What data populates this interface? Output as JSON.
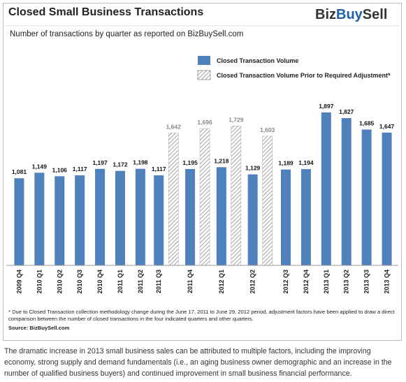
{
  "chart_data": {
    "type": "bar",
    "title": "Closed Small Business Transactions",
    "subtitle": "Number of transactions by quarter as reported on BizBuySell.com",
    "logo": [
      "Biz",
      "Buy",
      "Sell"
    ],
    "categories": [
      "2009 Q4",
      "2010 Q1",
      "2010 Q2",
      "2010 Q3",
      "2010 Q4",
      "2011 Q1",
      "2011 Q2",
      "2011 Q3",
      "2011 Q4",
      "2012 Q1",
      "2012 Q2",
      "2012 Q3",
      "2012 Q4",
      "2013 Q1",
      "2013 Q2",
      "2013 Q3",
      "2013 Q4"
    ],
    "series": [
      {
        "name": "Closed Transaction Volume",
        "color": "#4f81bd",
        "pattern": "solid",
        "values": [
          1081,
          1149,
          1106,
          1117,
          1197,
          1172,
          1198,
          1117,
          1195,
          1218,
          1129,
          1189,
          1194,
          1897,
          1827,
          1685,
          1647
        ],
        "value_labels": [
          "1,081",
          "1,149",
          "1,106",
          "1,117",
          "1,197",
          "1,172",
          "1,198",
          "1,117",
          "1,195",
          "1,218",
          "1,129",
          "1,189",
          "1,194",
          "1,897",
          "1,827",
          "1,685",
          "1,647"
        ]
      },
      {
        "name": "Closed Transaction Volume Prior to Required Adjustment*",
        "color": "#8c8c8c",
        "pattern": "hatch",
        "values": [
          null,
          null,
          null,
          null,
          null,
          null,
          null,
          1642,
          1696,
          1729,
          1603,
          null,
          null,
          null,
          null,
          null,
          null
        ],
        "value_labels": [
          null,
          null,
          null,
          null,
          null,
          null,
          null,
          "1,642",
          "1,696",
          "1,729",
          "1,603",
          null,
          null,
          null,
          null,
          null,
          null
        ]
      }
    ],
    "footnote": "* Due to Closed Transaction collection methodology change during the June 17, 2011 to June 29, 2012 period, adjustment factors have been applied to draw a direct comparison between the number of closed transactions in the four indicated quarters and other quarters.",
    "source": "Source: BizBuySell.com"
  },
  "caption": "The dramatic increase in 2013 small business sales can be attributed to multiple factors, including the improving economy, strong supply and demand fundamentals (i.e., an aging business owner demographic and an increase in the number of qualified business buyers) and continued improvement in small business financial performance."
}
